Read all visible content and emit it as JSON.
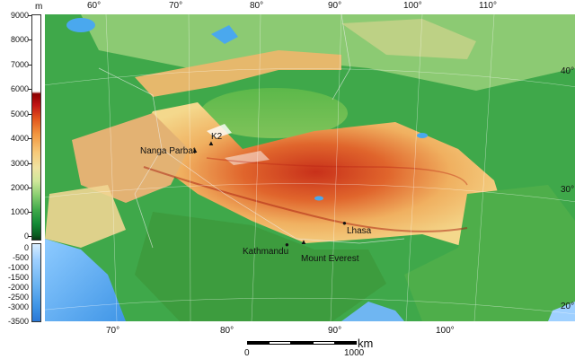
{
  "legend": {
    "unit": "m",
    "ticks": [
      "9000",
      "8000",
      "7000",
      "6000",
      "5000",
      "4000",
      "3000",
      "2000",
      "1000",
      "0",
      "0",
      "-500",
      "-1000",
      "-1500",
      "-2000",
      "-2500",
      "-3000",
      "-3500"
    ]
  },
  "graticule": {
    "top": [
      "60°",
      "70°",
      "80°",
      "90°",
      "100°",
      "110°"
    ],
    "bottom": [
      "70°",
      "80°",
      "90°",
      "100°"
    ],
    "right": [
      "40°",
      "30°",
      "20°"
    ]
  },
  "places": {
    "k2": "K2",
    "nanga_parbat": "Nanga Parbat",
    "lhasa": "Lhasa",
    "kathmandu": "Kathmandu",
    "everest": "Mount Everest"
  },
  "scale": {
    "unit": "km",
    "zero": "0",
    "max": "1000"
  },
  "colors": {
    "water": "#4aa8ee",
    "lowland": "#3fa84a",
    "plateau": "#e2541c",
    "snow": "#ffffff"
  }
}
